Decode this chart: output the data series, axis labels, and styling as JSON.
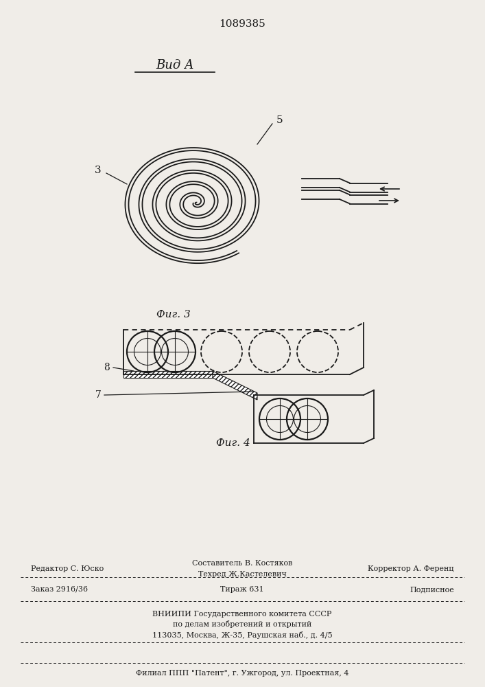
{
  "patent_number": "1089385",
  "view_label": "Вид А",
  "fig3_label": "Фиг. 3",
  "fig4_label": "Фиг. 4",
  "label_3": "3",
  "label_5": "5",
  "label_7": "7",
  "label_8": "8",
  "line_color": "#1a1a1a",
  "bg_color": "#f0ede8",
  "footer_line1": "Составитель В. Костяков",
  "footer_line2": "Техред Ж.Кастелевич",
  "footer_left": "Редактор С. Юско",
  "footer_right": "Корректор А. Ференц",
  "footer_order": "Заказ 2916/36",
  "footer_tirazh": "Тираж 631",
  "footer_podp": "Подписное",
  "footer_vniiipi": "ВНИИПИ Государственного комитета СССР",
  "footer_vniiipi2": "по делам изобретений и открытий",
  "footer_address": "113035, Москва, Ж-35, Раушская наб., д. 4/5",
  "footer_filial": "Филиал ППП \"Патент\", г. Ужгород, ул. Проектная, 4"
}
